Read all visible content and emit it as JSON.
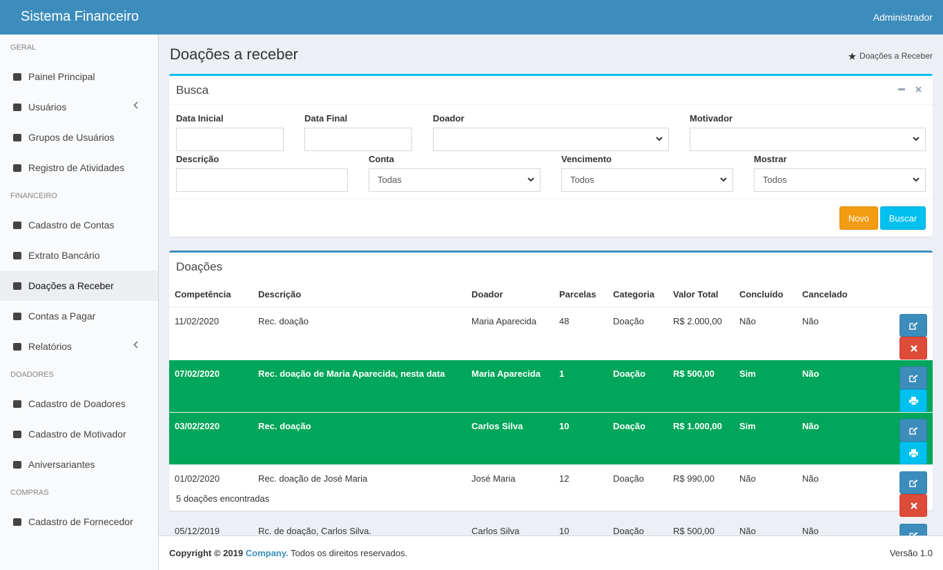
{
  "header": {
    "brand": "Sistema Financeiro",
    "user": "Administrador"
  },
  "sidebar": {
    "sections": [
      {
        "title": "GERAL",
        "items": [
          "Painel Principal",
          "Usuários",
          "Grupos de Usuários",
          "Registro de Atividades"
        ]
      },
      {
        "title": "FINANCEIRO",
        "items": [
          "Cadastro de Contas",
          "Extrato Bancário",
          "Doações a Receber",
          "Contas a Pagar",
          "Relatórios"
        ]
      },
      {
        "title": "DOADORES",
        "items": [
          "Cadastro de Doadores",
          "Cadastro de Motivador",
          "Aniversariantes"
        ]
      },
      {
        "title": "COMPRAS",
        "items": [
          "Cadastro de Fornecedor"
        ]
      }
    ]
  },
  "page": {
    "title": "Doações a receber",
    "breadcrumb": "Doações a Receber"
  },
  "search": {
    "title": "Busca",
    "labels": [
      "Data Inicial",
      "Data Final",
      "Doador",
      "Motivador",
      "Descrição",
      "Conta",
      "Vencimento",
      "Mostrar"
    ],
    "selects": [
      "Todas",
      "Todos",
      "Todos"
    ],
    "buttons": [
      "Novo",
      "Buscar"
    ]
  },
  "table": {
    "title": "Doações",
    "columns": [
      "Competência",
      "Descrição",
      "Doador",
      "Parcelas",
      "Categoria",
      "Valor Total",
      "Concluído",
      "Cancelado"
    ],
    "highlight_color": "#00a65a",
    "rows": [
      {
        "cells": [
          "11/02/2020",
          "Rec. doação",
          "Maria Aparecida",
          "48",
          "Doação",
          "R$ 2.000,00",
          "Não",
          "Não"
        ],
        "highlight": false
      },
      {
        "cells": [
          "07/02/2020",
          "Rec. doação de Maria Aparecida, nesta data",
          "Maria Aparecida",
          "1",
          "Doação",
          "R$ 500,00",
          "Sim",
          "Não"
        ],
        "highlight": true
      },
      {
        "cells": [
          "03/02/2020",
          "Rec. doação",
          "Carlos Silva",
          "10",
          "Doação",
          "R$ 1.000,00",
          "Sim",
          "Não"
        ],
        "highlight": true
      },
      {
        "cells": [
          "01/02/2020",
          "Rec. doação de José Maria",
          "José Maria",
          "12",
          "Doação",
          "R$ 990,00",
          "Não",
          "Não"
        ],
        "highlight": false
      },
      {
        "cells": [
          "05/12/2019",
          "Rc. de doação, Carlos Silva.",
          "Carlos Silva",
          "10",
          "Doação",
          "R$ 500,00",
          "Não",
          "Não"
        ],
        "highlight": false
      }
    ],
    "count": "5 doações encontradas"
  },
  "footer": {
    "copyright": "Copyright © 2019",
    "company": "Company.",
    "rights": "Todos os direitos reservados.",
    "version": "Versão 1.0"
  }
}
